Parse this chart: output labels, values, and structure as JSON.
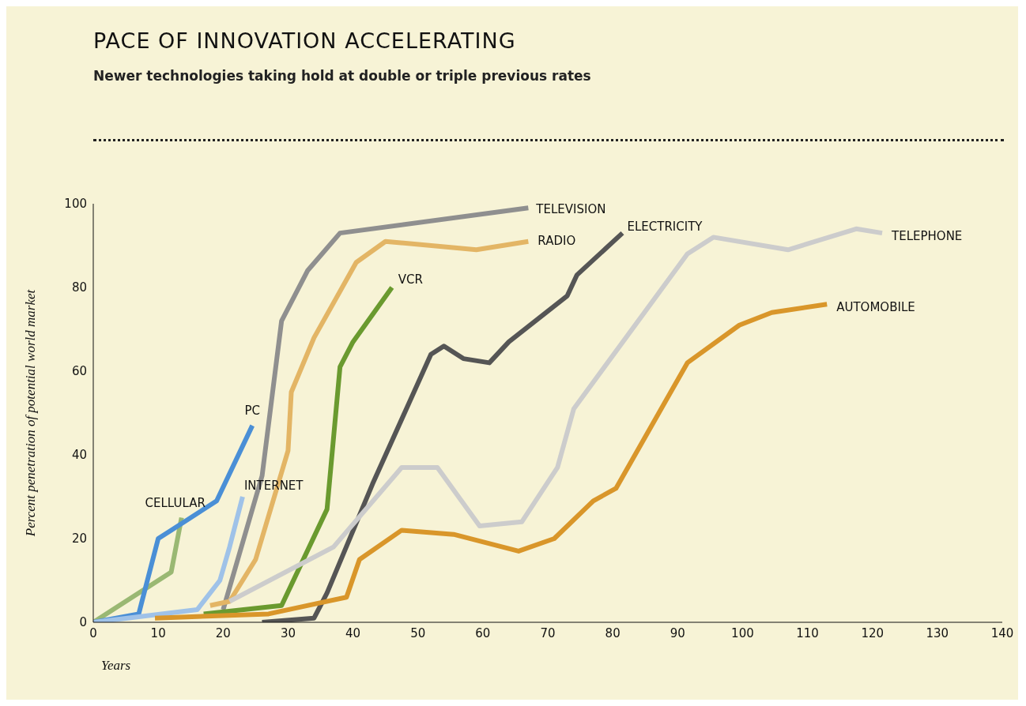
{
  "chart_data": {
    "type": "line",
    "title": "PACE OF INNOVATION ACCELERATING",
    "subtitle": "Newer technologies taking hold at double or triple previous rates",
    "xlabel": "Years",
    "ylabel": "Percent penetration of potential world market",
    "xlim": [
      0,
      140
    ],
    "xticks": [
      0,
      10,
      20,
      30,
      40,
      50,
      60,
      70,
      80,
      90,
      100,
      110,
      120,
      130,
      140
    ],
    "ylim": [
      0,
      100
    ],
    "yticks": [
      0,
      20,
      40,
      60,
      80,
      100
    ],
    "grid": false,
    "legend": false,
    "marker": "none",
    "line_style": "solid",
    "series": [
      {
        "name": "CELLULAR",
        "color": "#9ab873",
        "x": [
          0,
          12,
          13.6
        ],
        "values": [
          0,
          12,
          25
        ]
      },
      {
        "name": "PC",
        "color": "#4a8fd6",
        "x": [
          0,
          7,
          10,
          12,
          19,
          24.5
        ],
        "values": [
          0,
          2,
          20,
          22,
          29,
          47
        ]
      },
      {
        "name": "INTERNET",
        "color": "#9fc2e8",
        "x": [
          0,
          16,
          19.5,
          21,
          23
        ],
        "values": [
          0,
          3,
          10,
          18,
          30
        ]
      },
      {
        "name": "TELEVISION",
        "color": "#8f8f8f",
        "x": [
          20,
          26,
          29,
          33,
          38,
          67
        ],
        "values": [
          3,
          35,
          72,
          84,
          93,
          99
        ]
      },
      {
        "name": "RADIO",
        "color": "#e3b565",
        "x": [
          18,
          21,
          25,
          30,
          30.5,
          34,
          40.5,
          45,
          59,
          67
        ],
        "values": [
          4,
          5,
          15,
          41,
          55,
          68,
          86,
          91,
          89,
          91
        ]
      },
      {
        "name": "VCR",
        "color": "#6a9a2f",
        "x": [
          17,
          29,
          36,
          38,
          40,
          46
        ],
        "values": [
          2,
          4,
          27,
          61,
          67,
          80
        ]
      },
      {
        "name": "ELECTRICITY",
        "color": "#555555",
        "x": [
          26,
          34,
          36,
          43,
          52,
          54,
          57,
          61,
          64,
          73,
          74.5,
          81.5
        ],
        "values": [
          0,
          1,
          7,
          33,
          64,
          66,
          63,
          62,
          67,
          78,
          83,
          93
        ]
      },
      {
        "name": "TELEPHONE",
        "color": "#cccccc",
        "x": [
          21,
          37,
          47.5,
          53,
          59.5,
          66,
          71.5,
          74,
          91.5,
          95.5,
          107,
          117.5,
          121.5
        ],
        "values": [
          5,
          18,
          37,
          37,
          23,
          24,
          37,
          51,
          88,
          92,
          89,
          94,
          93
        ]
      },
      {
        "name": "AUTOMOBILE",
        "color": "#d9962a",
        "x": [
          9.5,
          27,
          39,
          41,
          47.5,
          55.5,
          65.5,
          71,
          77,
          80.5,
          91.5,
          99.5,
          104.5,
          113
        ],
        "values": [
          1,
          2,
          6,
          15,
          22,
          21,
          17,
          20,
          29,
          32,
          62,
          71,
          74,
          76
        ]
      }
    ]
  }
}
